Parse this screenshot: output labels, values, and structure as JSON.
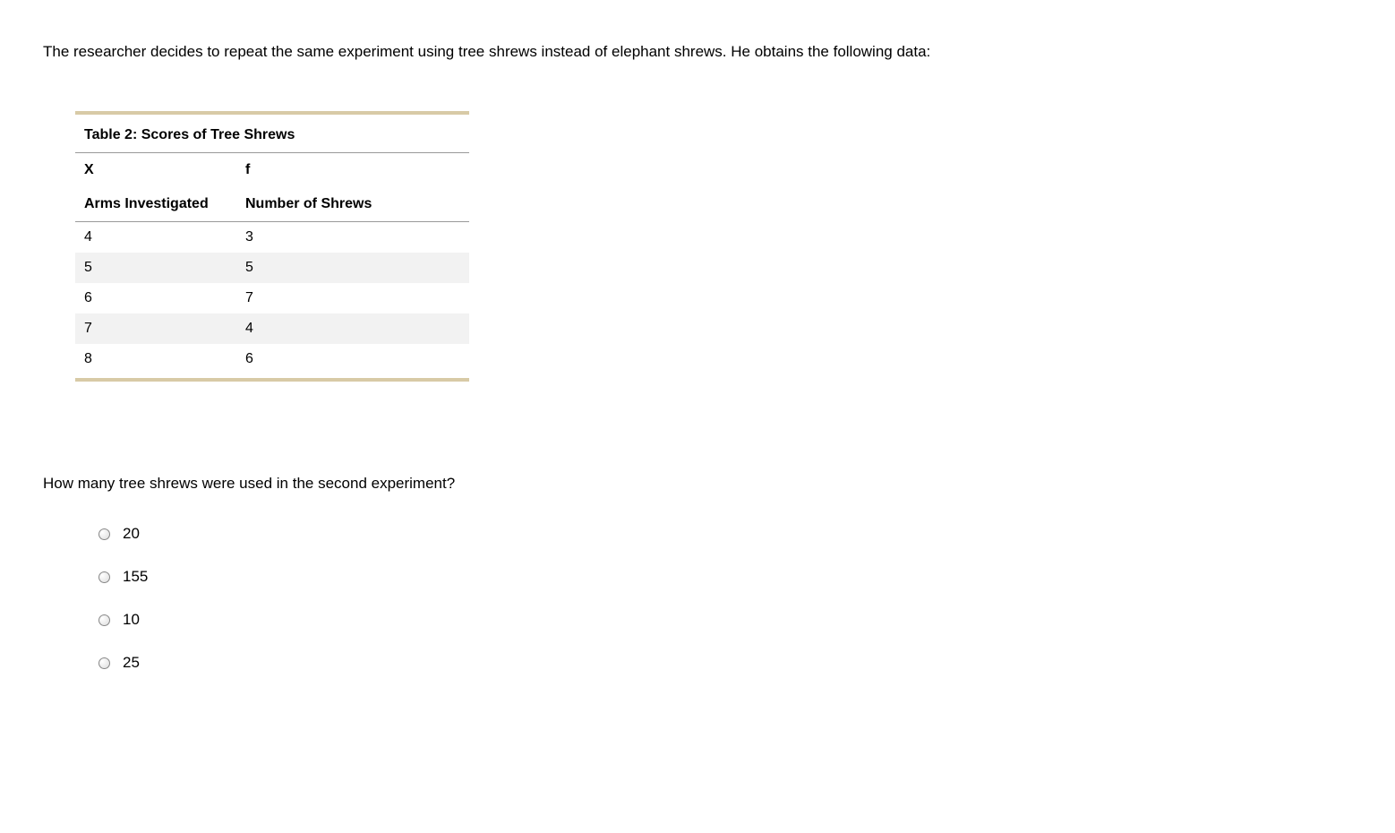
{
  "intro": "The researcher decides to repeat the same experiment using tree shrews instead of elephant shrews. He obtains the following data:",
  "table": {
    "title": "Table 2: Scores of Tree Shrews",
    "col1_symbol": "X",
    "col2_symbol": "f",
    "col1_label": "Arms Investigated",
    "col2_label": "Number of Shrews",
    "rows": [
      {
        "x": "4",
        "f": "3"
      },
      {
        "x": "5",
        "f": "5"
      },
      {
        "x": "6",
        "f": "7"
      },
      {
        "x": "7",
        "f": "4"
      },
      {
        "x": "8",
        "f": "6"
      }
    ],
    "colors": {
      "border_accent": "#d8caa6",
      "header_rule": "#999999",
      "row_alt_bg": "#f2f2f2",
      "background": "#ffffff"
    }
  },
  "question": "How many tree shrews were used in the second experiment?",
  "options": [
    {
      "label": "20"
    },
    {
      "label": "155"
    },
    {
      "label": "10"
    },
    {
      "label": "25"
    }
  ]
}
